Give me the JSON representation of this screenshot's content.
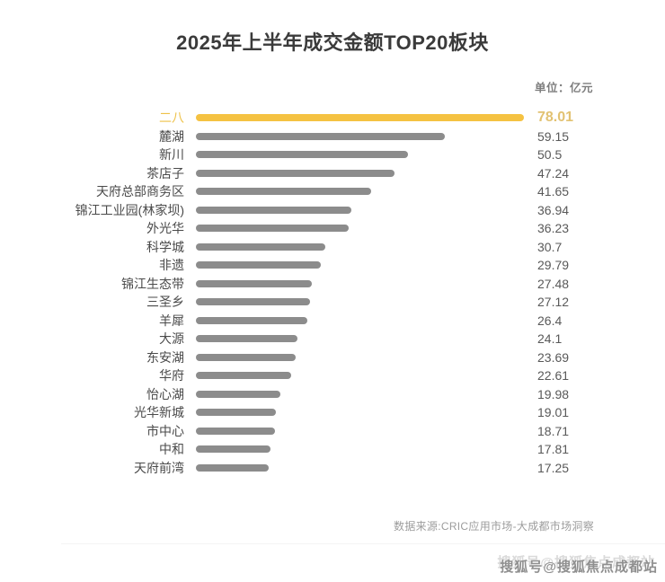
{
  "page": {
    "title": "2025年上半年成交金额TOP20板块",
    "unit_label": "单位：亿元",
    "source": "数据来源:CRIC应用市场-大成都市场洞察",
    "watermark": "搜狐号@搜狐焦点成都站"
  },
  "colors": {
    "highlight_bar": "#f5c242",
    "highlight_label": "#eec24a",
    "highlight_value": "#e2c272",
    "bar": "#8c8c8c",
    "label": "#4a4a4a",
    "value": "#595959"
  },
  "chart_data": {
    "type": "bar",
    "orientation": "horizontal",
    "title": "2025年上半年成交金额TOP20板块",
    "unit": "亿元",
    "categories": [
      "二八",
      "麓湖",
      "新川",
      "茶店子",
      "天府总部商务区",
      "锦江工业园(林家坝)",
      "外光华",
      "科学城",
      "非遗",
      "锦江生态带",
      "三圣乡",
      "羊犀",
      "大源",
      "东安湖",
      "华府",
      "怡心湖",
      "光华新城",
      "市中心",
      "中和",
      "天府前湾"
    ],
    "values": [
      78.01,
      59.15,
      50.5,
      47.24,
      41.65,
      36.94,
      36.23,
      30.7,
      29.79,
      27.48,
      27.12,
      26.4,
      24.1,
      23.69,
      22.61,
      19.98,
      19.01,
      18.71,
      17.81,
      17.25
    ],
    "highlight_index": 0,
    "xlim": [
      0,
      78.01
    ],
    "value_labels": true,
    "legend": false,
    "grid": false,
    "source": "数据来源:CRIC应用市场-大成都市场洞察"
  }
}
